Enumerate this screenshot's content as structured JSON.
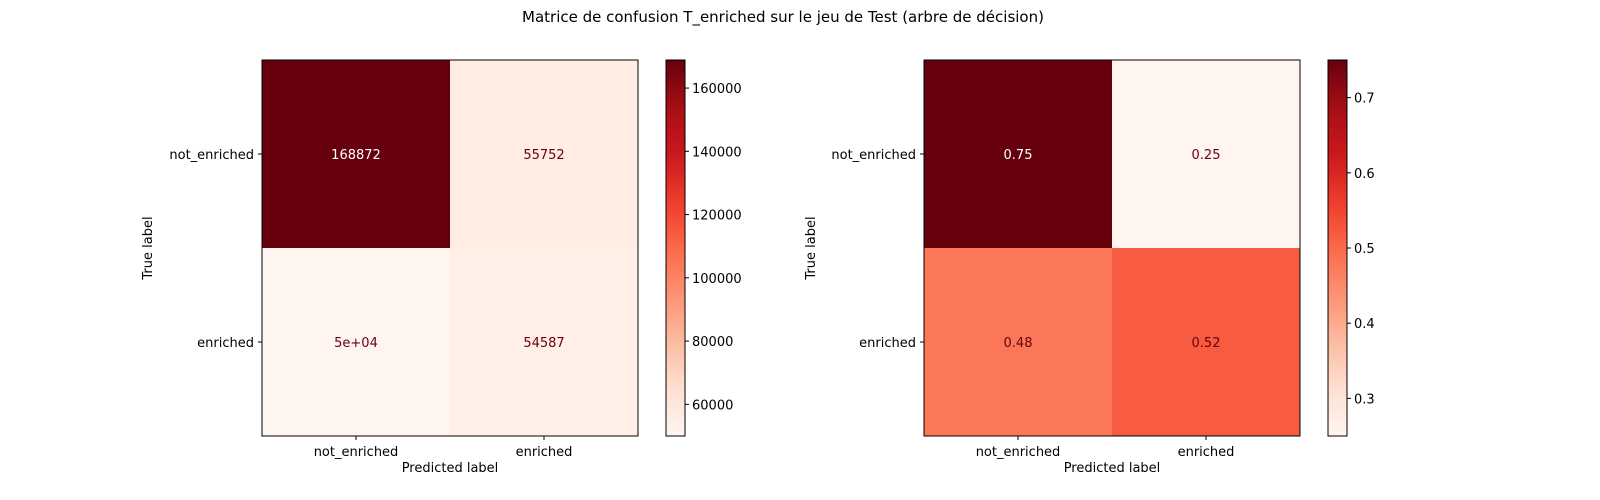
{
  "figure": {
    "title": "Matrice de confusion T_enriched sur le jeu de Test (arbre de décision)"
  },
  "chart_data": [
    {
      "type": "heatmap",
      "title": "",
      "xlabel": "Predicted label",
      "ylabel": "True label",
      "x_categories": [
        "not_enriched",
        "enriched"
      ],
      "y_categories": [
        "not_enriched",
        "enriched"
      ],
      "values": [
        [
          168872,
          55752
        ],
        [
          50000,
          54587
        ]
      ],
      "cell_labels": [
        [
          "168872",
          "55752"
        ],
        [
          "5e+04",
          "54587"
        ]
      ],
      "colormap": "Reds",
      "color_range": [
        50000,
        168872
      ],
      "colorbar_ticks": [
        60000,
        80000,
        100000,
        120000,
        140000,
        160000
      ],
      "colorbar_tick_labels": [
        "60000",
        "80000",
        "100000",
        "120000",
        "140000",
        "160000"
      ]
    },
    {
      "type": "heatmap",
      "title": "",
      "xlabel": "Predicted label",
      "ylabel": "True label",
      "x_categories": [
        "not_enriched",
        "enriched"
      ],
      "y_categories": [
        "not_enriched",
        "enriched"
      ],
      "values": [
        [
          0.75,
          0.25
        ],
        [
          0.48,
          0.52
        ]
      ],
      "cell_labels": [
        [
          "0.75",
          "0.25"
        ],
        [
          "0.48",
          "0.52"
        ]
      ],
      "colormap": "Reds",
      "color_range": [
        0.25,
        0.75
      ],
      "colorbar_ticks": [
        0.3,
        0.4,
        0.5,
        0.6,
        0.7
      ],
      "colorbar_tick_labels": [
        "0.3",
        "0.4",
        "0.5",
        "0.6",
        "0.7"
      ]
    }
  ]
}
